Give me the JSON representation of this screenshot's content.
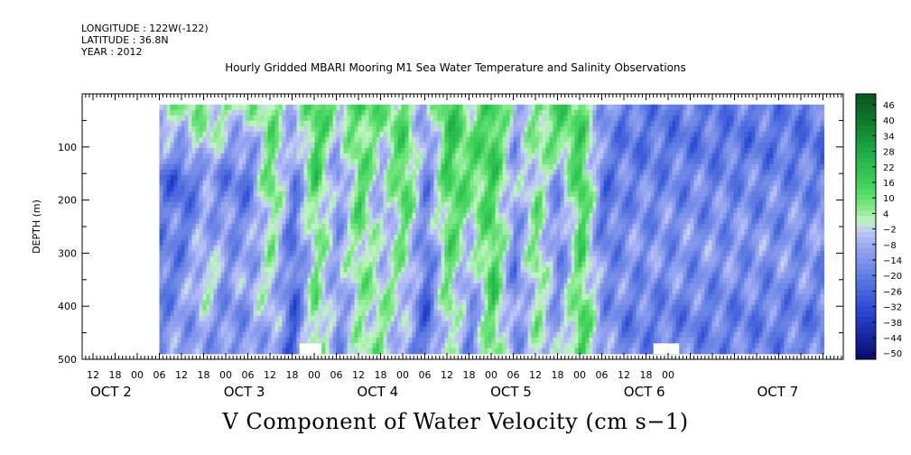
{
  "header": {
    "longitude": "LONGITUDE : 122W(-122)",
    "latitude": "LATITUDE : 36.8N",
    "year": "YEAR : 2012"
  },
  "chart_data": {
    "type": "heatmap",
    "title": "Hourly Gridded MBARI Mooring M1 Sea Water Temperature and Salinity Observations",
    "bottom_title": "V Component of Water Velocity (cm s−1)",
    "ylabel": "DEPTH (m)",
    "ylim": [
      500,
      0
    ],
    "y_ticks": [
      "100",
      "200",
      "300",
      "400",
      "500"
    ],
    "y_tick_values": [
      100,
      200,
      300,
      400,
      500
    ],
    "data_depth_range_m": [
      20,
      485
    ],
    "x_tick_labels": [
      "12",
      "18",
      "00",
      "06",
      "12",
      "18",
      "00",
      "06",
      "12",
      "18",
      "00",
      "06",
      "12",
      "18",
      "00",
      "06",
      "12",
      "18",
      "00",
      "06",
      "12",
      "18",
      "00",
      "06",
      "12",
      "18",
      "00"
    ],
    "x_day_labels": [
      "OCT 2",
      "OCT 3",
      "OCT 4",
      "OCT 5",
      "OCT 6",
      "OCT 7"
    ],
    "colorbar": {
      "labels": [
        "46",
        "40",
        "34",
        "28",
        "22",
        "16",
        "10",
        "4",
        "−2",
        "−8",
        "−14",
        "−20",
        "−26",
        "−32",
        "−38",
        "−44",
        "−50"
      ],
      "min": -50,
      "max": 50,
      "high_color": "#0a5a1e",
      "low_color": "#0a0a6e"
    },
    "approx_column_profiles": [
      {
        "hour": 18,
        "v": [
          6,
          -10,
          -22,
          -14,
          -18,
          -20,
          -14,
          -12
        ]
      },
      {
        "hour": 24,
        "v": [
          4,
          -6,
          -26,
          -20,
          -16,
          -14,
          -10,
          -12
        ]
      },
      {
        "hour": 30,
        "v": [
          6,
          4,
          -12,
          -8,
          -6,
          6,
          -8,
          -10
        ]
      },
      {
        "hour": 36,
        "v": [
          4,
          -8,
          -18,
          -14,
          -10,
          -12,
          -16,
          -10
        ]
      },
      {
        "hour": 42,
        "v": [
          2,
          -10,
          -20,
          -16,
          -12,
          -6,
          -10,
          -14
        ]
      },
      {
        "hour": 48,
        "v": [
          8,
          10,
          16,
          8,
          4,
          2,
          -2,
          -6
        ]
      },
      {
        "hour": 54,
        "v": [
          -2,
          -12,
          -18,
          -20,
          -22,
          -24,
          -26,
          -28
        ]
      },
      {
        "hour": 60,
        "v": [
          14,
          18,
          16,
          10,
          6,
          8,
          10,
          12
        ]
      },
      {
        "hour": 66,
        "v": [
          6,
          -6,
          -14,
          -12,
          -8,
          -10,
          -14,
          -12
        ]
      },
      {
        "hour": 72,
        "v": [
          16,
          10,
          14,
          12,
          8,
          6,
          4,
          2
        ]
      },
      {
        "hour": 78,
        "v": [
          8,
          2,
          -6,
          -8,
          -4,
          2,
          4,
          6
        ]
      },
      {
        "hour": 84,
        "v": [
          10,
          14,
          18,
          12,
          6,
          4,
          -4,
          -8
        ]
      },
      {
        "hour": 90,
        "v": [
          -8,
          -14,
          -18,
          -16,
          -20,
          -24,
          -26,
          -22
        ]
      },
      {
        "hour": 96,
        "v": [
          18,
          20,
          16,
          14,
          12,
          10,
          8,
          6
        ]
      },
      {
        "hour": 102,
        "v": [
          6,
          8,
          10,
          4,
          -4,
          -12,
          -16,
          -14
        ]
      },
      {
        "hour": 108,
        "v": [
          18,
          20,
          16,
          14,
          16,
          18,
          14,
          10
        ]
      },
      {
        "hour": 114,
        "v": [
          -6,
          -10,
          -8,
          -12,
          -16,
          -18,
          -14,
          -12
        ]
      },
      {
        "hour": 120,
        "v": [
          8,
          6,
          4,
          8,
          10,
          6,
          4,
          2
        ]
      },
      {
        "hour": 126,
        "v": [
          14,
          10,
          -12,
          -16,
          -18,
          -14,
          -10,
          -8
        ]
      },
      {
        "hour": 132,
        "v": [
          10,
          16,
          20,
          18,
          14,
          12,
          16,
          18
        ]
      },
      {
        "hour": 138,
        "v": [
          -10,
          -16,
          -20,
          -22,
          -18,
          -14,
          -12,
          -10
        ]
      },
      {
        "hour": 144,
        "v": [
          -18,
          -20,
          -16,
          -14,
          -12,
          -14,
          -18,
          -16
        ]
      }
    ],
    "white_gaps": [
      {
        "hour_start": 56,
        "hour_end": 62
      },
      {
        "hour_start": 152,
        "hour_end": 159
      }
    ]
  }
}
